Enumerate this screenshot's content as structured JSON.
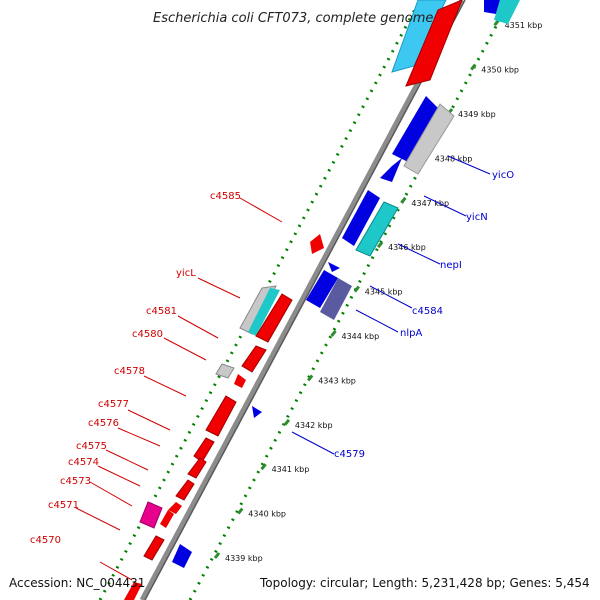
{
  "title": "Escherichia coli CFT073, complete genome",
  "footer": {
    "accession": "Accession: NC_004431",
    "topology": "Topology: circular; Length: 5,231,428 bp; Genes: 5,454"
  },
  "colors": {
    "red": "#f00000",
    "blue": "#0000e0",
    "cyan": "#1ec8c8",
    "sky": "#3cc8f0",
    "gray": "#c8c8c8",
    "slate": "#5a5aa0",
    "magenta": "#e6008c",
    "backbone": "#8c8c8c",
    "tick_dots": "#008000",
    "tick_bars": "#2d8c2d",
    "label_red": "#d00000",
    "label_blue": "#0000cc"
  },
  "ticks": [
    {
      "label": "4339 kbp"
    },
    {
      "label": "4340 kbp"
    },
    {
      "label": "4341 kbp"
    },
    {
      "label": "4342 kbp"
    },
    {
      "label": "4343 kbp"
    },
    {
      "label": "4344 kbp"
    },
    {
      "label": "4345 kbp"
    },
    {
      "label": "4346 kbp"
    },
    {
      "label": "4347 kbp"
    },
    {
      "label": "4348 kbp"
    },
    {
      "label": "4349 kbp"
    },
    {
      "label": "4350 kbp"
    },
    {
      "label": "4351 kbp"
    }
  ],
  "left_labels": [
    "c4570",
    "c4571",
    "c4573",
    "c4574",
    "c4575",
    "c4576",
    "c4577",
    "c4578",
    "c4580",
    "c4581",
    "yicL",
    "c4585"
  ],
  "right_labels": [
    "c4579",
    "nlpA",
    "c4584",
    "nepI",
    "yicN",
    "yicO"
  ]
}
